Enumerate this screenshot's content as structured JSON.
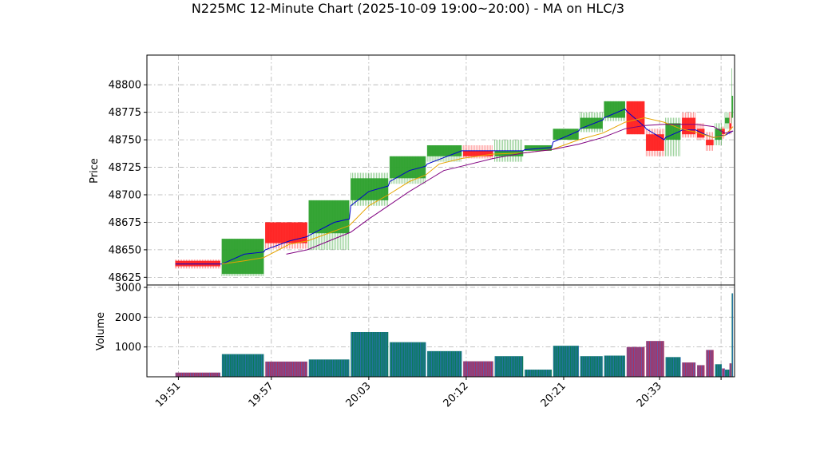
{
  "chart_data": {
    "type": "candlestick",
    "title": "N225MC 12-Minute Chart (2025-10-09 19:00~20:00) - MA on HLC/3",
    "price_panel": {
      "ylabel": "Price",
      "ylim": [
        48618,
        48827
      ],
      "yticks": [
        48625,
        48650,
        48675,
        48700,
        48725,
        48750,
        48775,
        48800
      ],
      "grid": true
    },
    "volume_panel": {
      "ylabel": "Volume",
      "ylim": [
        0,
        3080
      ],
      "yticks": [
        1000,
        2000,
        3000
      ],
      "grid": true
    },
    "x_range": [
      18.5,
      57.7
    ],
    "x_ticks": [
      {
        "pos": 20.6,
        "label": "19:51"
      },
      {
        "pos": 26.8,
        "label": "19:57"
      },
      {
        "pos": 33.3,
        "label": "20:03"
      },
      {
        "pos": 39.8,
        "label": "20:12"
      },
      {
        "pos": 46.3,
        "label": "20:21"
      },
      {
        "pos": 52.7,
        "label": "20:33"
      },
      {
        "pos": 56.8,
        "label": ""
      }
    ],
    "candles": [
      {
        "x0": 20.4,
        "x1": 23.4,
        "open": 48640,
        "high": 48641,
        "low": 48633,
        "close": 48635
      },
      {
        "x0": 23.5,
        "x1": 26.3,
        "open": 48628,
        "high": 48660,
        "low": 48626,
        "close": 48660
      },
      {
        "x0": 26.4,
        "x1": 29.2,
        "open": 48675,
        "high": 48675,
        "low": 48651,
        "close": 48656
      },
      {
        "x0": 29.3,
        "x1": 32.0,
        "open": 48665,
        "high": 48695,
        "low": 48650,
        "close": 48695
      },
      {
        "x0": 32.1,
        "x1": 34.6,
        "open": 48695,
        "high": 48720,
        "low": 48690,
        "close": 48715
      },
      {
        "x0": 34.7,
        "x1": 37.1,
        "open": 48715,
        "high": 48735,
        "low": 48710,
        "close": 48735
      },
      {
        "x0": 37.2,
        "x1": 39.5,
        "open": 48735,
        "high": 48745,
        "low": 48730,
        "close": 48745
      },
      {
        "x0": 39.6,
        "x1": 41.6,
        "open": 48740,
        "high": 48745,
        "low": 48733,
        "close": 48735
      },
      {
        "x0": 41.7,
        "x1": 43.6,
        "open": 48735,
        "high": 48750,
        "low": 48730,
        "close": 48740
      },
      {
        "x0": 43.7,
        "x1": 45.5,
        "open": 48740,
        "high": 48745,
        "low": 48740,
        "close": 48745
      },
      {
        "x0": 45.6,
        "x1": 47.3,
        "open": 48750,
        "high": 48760,
        "low": 48750,
        "close": 48760
      },
      {
        "x0": 47.4,
        "x1": 48.9,
        "open": 48760,
        "high": 48775,
        "low": 48757,
        "close": 48770
      },
      {
        "x0": 49.0,
        "x1": 50.4,
        "open": 48770,
        "high": 48785,
        "low": 48767,
        "close": 48785
      },
      {
        "x0": 50.5,
        "x1": 51.7,
        "open": 48785,
        "high": 48785,
        "low": 48755,
        "close": 48755
      },
      {
        "x0": 51.8,
        "x1": 53.0,
        "open": 48755,
        "high": 48760,
        "low": 48735,
        "close": 48740
      },
      {
        "x0": 53.1,
        "x1": 54.1,
        "open": 48750,
        "high": 48770,
        "low": 48735,
        "close": 48765
      },
      {
        "x0": 54.2,
        "x1": 55.1,
        "open": 48770,
        "high": 48775,
        "low": 48752,
        "close": 48755
      },
      {
        "x0": 55.2,
        "x1": 55.7,
        "open": 48760,
        "high": 48765,
        "low": 48750,
        "close": 48752
      },
      {
        "x0": 55.8,
        "x1": 56.3,
        "open": 48750,
        "high": 48757,
        "low": 48740,
        "close": 48745
      },
      {
        "x0": 56.4,
        "x1": 56.85,
        "open": 48750,
        "high": 48765,
        "low": 48745,
        "close": 48760
      },
      {
        "x0": 56.86,
        "x1": 57.05,
        "open": 48760,
        "high": 48762,
        "low": 48751,
        "close": 48755
      },
      {
        "x0": 57.06,
        "x1": 57.35,
        "open": 48765,
        "high": 48775,
        "low": 48760,
        "close": 48770
      },
      {
        "x0": 57.36,
        "x1": 57.5,
        "open": 48765,
        "high": 48775,
        "low": 48755,
        "close": 48760
      },
      {
        "x0": 57.51,
        "x1": 57.6,
        "open": 48770,
        "high": 48815,
        "low": 48765,
        "close": 48790
      }
    ],
    "volume": [
      {
        "x0": 20.4,
        "x1": 23.4,
        "value": 140,
        "direction": "down"
      },
      {
        "x0": 23.5,
        "x1": 26.3,
        "value": 760,
        "direction": "up"
      },
      {
        "x0": 26.4,
        "x1": 29.2,
        "value": 510,
        "direction": "down"
      },
      {
        "x0": 29.3,
        "x1": 32.0,
        "value": 580,
        "direction": "up"
      },
      {
        "x0": 32.1,
        "x1": 34.6,
        "value": 1500,
        "direction": "up"
      },
      {
        "x0": 34.7,
        "x1": 37.1,
        "value": 1160,
        "direction": "up"
      },
      {
        "x0": 37.2,
        "x1": 39.5,
        "value": 860,
        "direction": "up"
      },
      {
        "x0": 39.6,
        "x1": 41.6,
        "value": 520,
        "direction": "down"
      },
      {
        "x0": 41.7,
        "x1": 43.6,
        "value": 690,
        "direction": "up"
      },
      {
        "x0": 43.7,
        "x1": 45.5,
        "value": 240,
        "direction": "up"
      },
      {
        "x0": 45.6,
        "x1": 47.3,
        "value": 1040,
        "direction": "up"
      },
      {
        "x0": 47.4,
        "x1": 48.9,
        "value": 690,
        "direction": "up"
      },
      {
        "x0": 49.0,
        "x1": 50.4,
        "value": 710,
        "direction": "up"
      },
      {
        "x0": 50.5,
        "x1": 51.7,
        "value": 1000,
        "direction": "down"
      },
      {
        "x0": 51.8,
        "x1": 53.0,
        "value": 1200,
        "direction": "down"
      },
      {
        "x0": 53.1,
        "x1": 54.1,
        "value": 660,
        "direction": "up"
      },
      {
        "x0": 54.2,
        "x1": 55.1,
        "value": 480,
        "direction": "down"
      },
      {
        "x0": 55.2,
        "x1": 55.7,
        "value": 390,
        "direction": "down"
      },
      {
        "x0": 55.8,
        "x1": 56.3,
        "value": 900,
        "direction": "down"
      },
      {
        "x0": 56.4,
        "x1": 56.85,
        "value": 420,
        "direction": "up"
      },
      {
        "x0": 56.86,
        "x1": 57.05,
        "value": 280,
        "direction": "down"
      },
      {
        "x0": 57.06,
        "x1": 57.35,
        "value": 240,
        "direction": "up"
      },
      {
        "x0": 57.36,
        "x1": 57.5,
        "value": 450,
        "direction": "down"
      },
      {
        "x0": 57.51,
        "x1": 57.6,
        "value": 2800,
        "direction": "up"
      }
    ],
    "moving_averages": [
      {
        "color": "#0000cc",
        "points": [
          [
            20.4,
            48637
          ],
          [
            23.4,
            48637
          ],
          [
            23.5,
            48637
          ],
          [
            25.0,
            48646
          ],
          [
            26.3,
            48648
          ],
          [
            26.4,
            48650
          ],
          [
            28.0,
            48658
          ],
          [
            29.2,
            48662
          ],
          [
            29.3,
            48663
          ],
          [
            31.0,
            48675
          ],
          [
            32.0,
            48678
          ],
          [
            32.1,
            48690
          ],
          [
            33.3,
            48703
          ],
          [
            34.6,
            48708
          ],
          [
            34.7,
            48712
          ],
          [
            36.0,
            48722
          ],
          [
            37.1,
            48726
          ],
          [
            37.2,
            48728
          ],
          [
            39.5,
            48740
          ],
          [
            39.6,
            48740
          ],
          [
            41.6,
            48740
          ],
          [
            41.7,
            48740
          ],
          [
            43.6,
            48740
          ],
          [
            43.7,
            48741
          ],
          [
            45.5,
            48743
          ],
          [
            45.6,
            48748
          ],
          [
            47.3,
            48758
          ],
          [
            47.4,
            48760
          ],
          [
            48.9,
            48768
          ],
          [
            49.0,
            48770
          ],
          [
            50.4,
            48778
          ],
          [
            50.5,
            48776
          ],
          [
            51.7,
            48762
          ],
          [
            51.8,
            48760
          ],
          [
            53.0,
            48750
          ],
          [
            53.1,
            48752
          ],
          [
            54.1,
            48758
          ],
          [
            54.2,
            48759
          ],
          [
            55.1,
            48759
          ],
          [
            55.7,
            48755
          ],
          [
            56.3,
            48752
          ],
          [
            56.85,
            48754
          ],
          [
            57.05,
            48754
          ],
          [
            57.6,
            48758
          ]
        ]
      },
      {
        "color": "#e6a400",
        "points": [
          [
            23.5,
            48637
          ],
          [
            25.0,
            48640
          ],
          [
            26.3,
            48643
          ],
          [
            28.0,
            48655
          ],
          [
            29.2,
            48658
          ],
          [
            31.0,
            48667
          ],
          [
            32.0,
            48672
          ],
          [
            33.3,
            48690
          ],
          [
            34.6,
            48700
          ],
          [
            36.0,
            48712
          ],
          [
            37.1,
            48718
          ],
          [
            38.0,
            48728
          ],
          [
            39.5,
            48733
          ],
          [
            41.6,
            48737
          ],
          [
            43.6,
            48738
          ],
          [
            45.5,
            48741
          ],
          [
            47.3,
            48750
          ],
          [
            48.9,
            48756
          ],
          [
            50.4,
            48766
          ],
          [
            51.7,
            48770
          ],
          [
            53.0,
            48766
          ],
          [
            54.1,
            48760
          ],
          [
            55.1,
            48757
          ],
          [
            56.3,
            48752
          ],
          [
            57.05,
            48754
          ],
          [
            57.6,
            48762
          ]
        ]
      },
      {
        "color": "#800080",
        "points": [
          [
            27.8,
            48646
          ],
          [
            29.2,
            48650
          ],
          [
            31.0,
            48660
          ],
          [
            32.1,
            48666
          ],
          [
            33.3,
            48678
          ],
          [
            34.6,
            48690
          ],
          [
            36.0,
            48703
          ],
          [
            37.1,
            48712
          ],
          [
            38.3,
            48722
          ],
          [
            39.5,
            48726
          ],
          [
            41.6,
            48733
          ],
          [
            43.6,
            48738
          ],
          [
            45.5,
            48741
          ],
          [
            47.3,
            48746
          ],
          [
            48.9,
            48752
          ],
          [
            50.4,
            48760
          ],
          [
            51.7,
            48763
          ],
          [
            53.0,
            48764
          ],
          [
            54.1,
            48764
          ],
          [
            55.1,
            48764
          ],
          [
            56.3,
            48762
          ],
          [
            57.05,
            48756
          ],
          [
            57.6,
            48758
          ]
        ]
      }
    ]
  }
}
